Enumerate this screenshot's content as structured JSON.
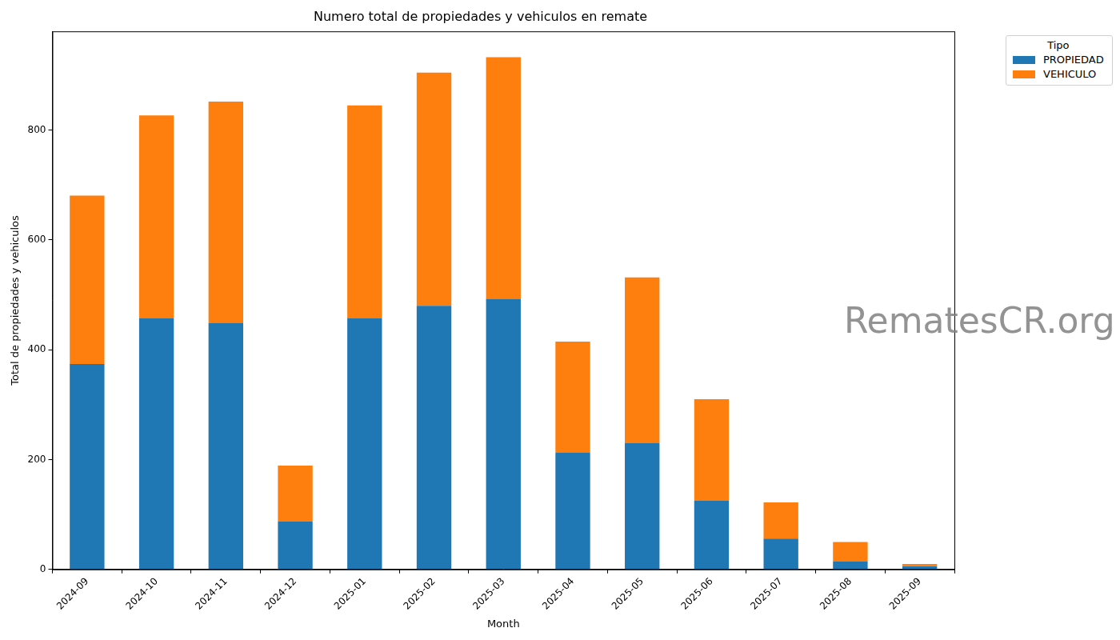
{
  "chart_data": {
    "type": "bar",
    "title": "Numero total de propiedades y vehiculos en remate",
    "x_label": "Month",
    "y_label": "Total de propiedades y vehiculos",
    "legend_title": "Tipo",
    "annotations": [
      "RematesCR.org"
    ],
    "categories": [
      "2024-09",
      "2024-10",
      "2024-11",
      "2024-12",
      "2025-01",
      "2025-02",
      "2025-03",
      "2025-04",
      "2025-05",
      "2025-06",
      "2025-07",
      "2025-08",
      "2025-09"
    ],
    "series": [
      {
        "name": "PROPIEDAD",
        "color": "#1f77b4",
        "values": [
          374,
          458,
          449,
          87,
          458,
          480,
          493,
          213,
          230,
          125,
          56,
          15,
          6
        ]
      },
      {
        "name": "VEHICULO",
        "color": "#ff7f0e",
        "values": [
          307,
          369,
          403,
          102,
          387,
          425,
          440,
          202,
          302,
          185,
          66,
          35,
          4
        ]
      }
    ],
    "stacked": true,
    "ylim": [
      0,
      980
    ],
    "yticks": [
      0,
      200,
      400,
      600,
      800
    ],
    "grid": false,
    "legend": "upper right"
  }
}
